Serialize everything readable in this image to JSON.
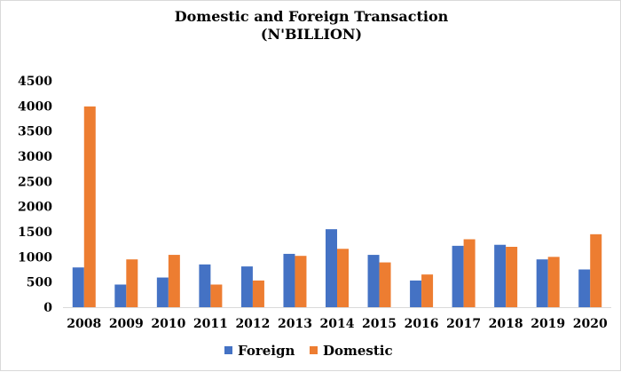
{
  "chart_data": {
    "type": "bar",
    "title": "Domestic and Foreign Transaction",
    "subtitle": "(N'BILLION)",
    "xlabel": "",
    "ylabel": "",
    "categories": [
      "2008",
      "2009",
      "2010",
      "2011",
      "2012",
      "2013",
      "2014",
      "2015",
      "2016",
      "2017",
      "2018",
      "2019",
      "2020"
    ],
    "series": [
      {
        "name": "Foreign",
        "color": "#4472c4",
        "values": [
          790,
          450,
          590,
          850,
          810,
          1060,
          1550,
          1040,
          530,
          1220,
          1240,
          950,
          750
        ]
      },
      {
        "name": "Domestic",
        "color": "#ed7d31",
        "values": [
          3990,
          950,
          1040,
          450,
          530,
          1020,
          1160,
          890,
          650,
          1350,
          1200,
          1000,
          1450
        ]
      }
    ],
    "ylim": [
      0,
      4500
    ],
    "yticks": [
      "0",
      "500",
      "1000",
      "1500",
      "2000",
      "2500",
      "3000",
      "3500",
      "4000",
      "4500"
    ],
    "grid": false,
    "legend": "bottom"
  }
}
